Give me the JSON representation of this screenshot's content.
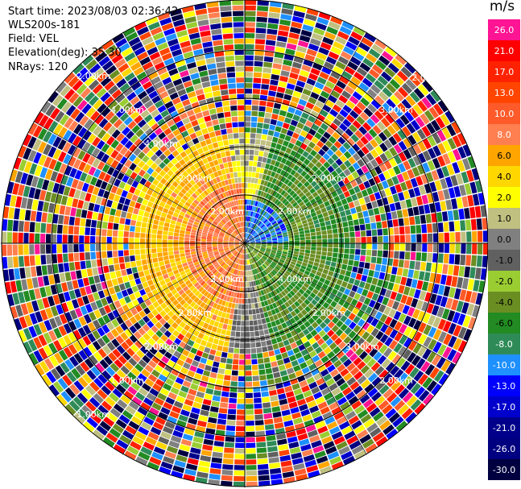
{
  "info": {
    "start_time": "Start time: 2023/08/03 02:36:42",
    "site": "WLS200s-181",
    "field": "Field: VEL",
    "elevation": "Elevation(deg): 35.30",
    "nrays": "NRays: 120"
  },
  "ring_labels": [
    "2.00km",
    "4.00km",
    "4.00km",
    "2.00km",
    "2.00km",
    "2.00km",
    "2.00km",
    "3.00km",
    "2.00km",
    "2.00km",
    "4.00km",
    "3.00km",
    "2.00km",
    "2.00km",
    "1.00km",
    "2.00km",
    "2.00km",
    "3.00km",
    "1.00km",
    "2.00km",
    "2.00km"
  ],
  "colorbar": {
    "unit": "m/s",
    "levels": [
      "26.0",
      "21.0",
      "17.0",
      "13.0",
      "10.0",
      "8.0",
      "6.0",
      "4.0",
      "2.0",
      "1.0",
      "0.0",
      "-1.0",
      "-2.0",
      "-4.0",
      "-6.0",
      "-8.0",
      "-10.0",
      "-13.0",
      "-17.0",
      "-21.0",
      "-26.0",
      "-30.0"
    ],
    "colors": [
      "#ff1493",
      "#ff0000",
      "#ff2200",
      "#ff4500",
      "#ff5a2a",
      "#ff7f50",
      "#ffa500",
      "#ffd700",
      "#ffff00",
      "#c0c080",
      "#808080",
      "#606060",
      "#9acd32",
      "#6b8e23",
      "#228b22",
      "#2e8b57",
      "#1e90ff",
      "#0000ff",
      "#0000cd",
      "#00008b",
      "#000080",
      "#000040"
    ]
  }
}
